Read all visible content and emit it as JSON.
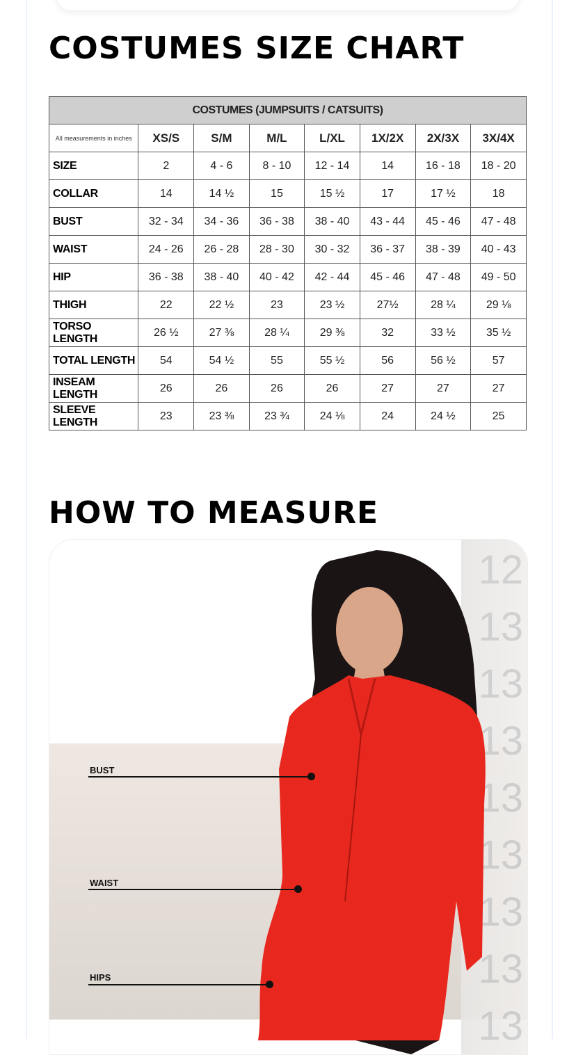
{
  "size_chart": {
    "title": "COSTUMES SIZE CHART",
    "caption": "COSTUMES (JUMPSUITS / CATSUITS)",
    "note": "All measurements in inches",
    "sizes": [
      "XS/S",
      "S/M",
      "M/L",
      "L/XL",
      "1X/2X",
      "2X/3X",
      "3X/4X"
    ],
    "rows": [
      {
        "label": "SIZE",
        "values": [
          "2",
          "4 - 6",
          "8 - 10",
          "12 - 14",
          "14",
          "16 - 18",
          "18 - 20"
        ]
      },
      {
        "label": "COLLAR",
        "values": [
          "14",
          "14 ½",
          "15",
          "15 ½",
          "17",
          "17 ½",
          "18"
        ]
      },
      {
        "label": "BUST",
        "values": [
          "32 - 34",
          "34 - 36",
          "36 - 38",
          "38 - 40",
          "43 - 44",
          "45 - 46",
          "47 - 48"
        ]
      },
      {
        "label": "WAIST",
        "values": [
          "24 - 26",
          "26 - 28",
          "28 - 30",
          "30 - 32",
          "36 - 37",
          "38 - 39",
          "40 - 43"
        ]
      },
      {
        "label": "HIP",
        "values": [
          "36 - 38",
          "38 - 40",
          "40 - 42",
          "42 - 44",
          "45 - 46",
          "47 - 48",
          "49 - 50"
        ]
      },
      {
        "label": "THIGH",
        "values": [
          "22",
          "22 ½",
          "23",
          "23 ½",
          "27½",
          "28 ¼",
          "29 ⅛"
        ]
      },
      {
        "label": "TORSO LENGTH",
        "values": [
          "26 ½",
          "27 ⅜",
          "28 ¼",
          "29 ⅜",
          "32",
          "33 ½",
          "35 ½"
        ]
      },
      {
        "label": "TOTAL LENGTH",
        "values": [
          "54",
          "54 ½",
          "55",
          "55 ½",
          "56",
          "56 ½",
          "57"
        ]
      },
      {
        "label": "INSEAM LENGTH",
        "values": [
          "26",
          "26",
          "26",
          "26",
          "27",
          "27",
          "27"
        ]
      },
      {
        "label": "SLEEVE LENGTH",
        "values": [
          "23",
          "23 ⅜",
          "23 ¾",
          "24 ⅛",
          "24",
          "24 ½",
          "25"
        ]
      }
    ]
  },
  "how_to_measure": {
    "title": "HOW TO MEASURE",
    "labels": {
      "bust": "BUST",
      "waist": "WAIST",
      "hips": "HIPS"
    },
    "ruler_numbers": [
      "12",
      "13",
      "13",
      "13",
      "13",
      "13",
      "13",
      "13",
      "13"
    ],
    "garment_color": "#e8281e"
  }
}
